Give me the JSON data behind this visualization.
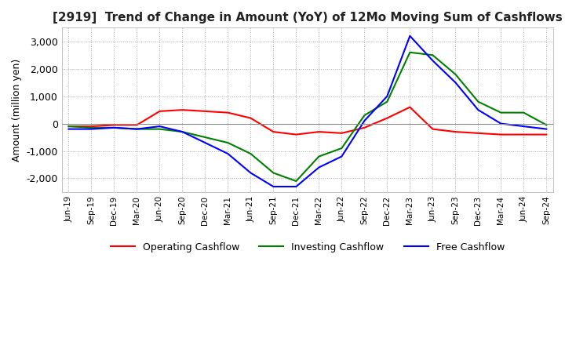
{
  "title": "[2919]  Trend of Change in Amount (YoY) of 12Mo Moving Sum of Cashflows",
  "ylabel": "Amount (million yen)",
  "ylim": [
    -2500,
    3500
  ],
  "yticks": [
    -2000,
    -1000,
    0,
    1000,
    2000,
    3000
  ],
  "x_labels": [
    "Jun-19",
    "Sep-19",
    "Dec-19",
    "Mar-20",
    "Jun-20",
    "Sep-20",
    "Dec-20",
    "Mar-21",
    "Jun-21",
    "Sep-21",
    "Dec-21",
    "Mar-22",
    "Jun-22",
    "Sep-22",
    "Dec-22",
    "Mar-23",
    "Jun-23",
    "Sep-23",
    "Dec-23",
    "Mar-24",
    "Jun-24",
    "Sep-24"
  ],
  "operating": [
    -100,
    -100,
    -50,
    -50,
    450,
    500,
    450,
    400,
    200,
    -300,
    -400,
    -300,
    -350,
    -150,
    200,
    600,
    -200,
    -300,
    -350,
    -400,
    -400,
    -400
  ],
  "investing": [
    -100,
    -150,
    -150,
    -200,
    -200,
    -300,
    -500,
    -700,
    -1100,
    -1800,
    -2100,
    -1200,
    -900,
    300,
    800,
    2600,
    2500,
    1800,
    800,
    400,
    400,
    -50
  ],
  "free": [
    -200,
    -200,
    -150,
    -200,
    -100,
    -300,
    -700,
    -1100,
    -1800,
    -2300,
    -2300,
    -1600,
    -1200,
    100,
    1000,
    3200,
    2300,
    1500,
    500,
    0,
    -100,
    -200
  ],
  "op_color": "#ff0000",
  "inv_color": "#008000",
  "free_color": "#0000ff",
  "background_color": "#ffffff",
  "title_fontsize": 11,
  "legend_labels": [
    "Operating Cashflow",
    "Investing Cashflow",
    "Free Cashflow"
  ]
}
